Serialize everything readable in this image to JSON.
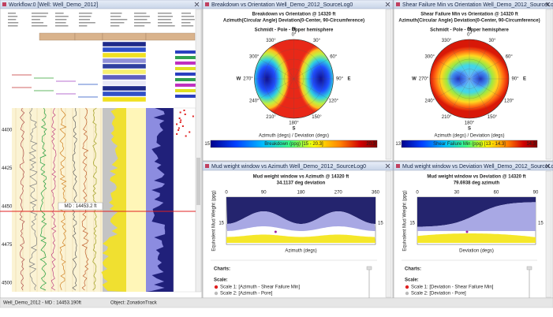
{
  "workflow": {
    "title": "Workflow:0 [Well: Well_Demo_2012]",
    "depths": [
      "4400",
      "4425",
      "4450",
      "4475",
      "4500"
    ],
    "md_label": "MD : 14453.2 ft"
  },
  "stereonets": [
    {
      "window_title": "Breakdown vs Orientation Well_Demo_2012_SourceLog0",
      "title": "Breakdown vs Orientation @ 14320 ft",
      "subtitle": "Azimuth(Circular Angle) Deviation(0-Center, 90-Circumference)",
      "projection": "Schmidt - Pole - Upper hemisphere",
      "axis_label": "Azimuth (degs) / Deviation (degs)",
      "colorbar_label": "Breakdown (ppg) [15 - 20.3]",
      "colorbar_min": "15",
      "colorbar_max": "20.3"
    },
    {
      "window_title": "Shear Failure Min vs Orientation Well_Demo_2012_SourceLog0",
      "title": "Shear Failure Min vs Orientation @ 14320 ft",
      "subtitle": "Azimuth(Circular Angle) Deviation(0-Center, 90-Circumference)",
      "projection": "Schmidt - Pole - Upper hemisphere",
      "axis_label": "Azimuth (degs) / Deviation (degs)",
      "colorbar_label": "Shear Failure Min (ppg) [13 - 14.3]",
      "colorbar_min": "13",
      "colorbar_max": "14.3"
    }
  ],
  "ring_labels": [
    "0°",
    "30°",
    "60°",
    "90°",
    "120°",
    "150°",
    "180°",
    "210°",
    "240°",
    "270°",
    "300°",
    "330°"
  ],
  "cardinals": [
    "N",
    "E",
    "S",
    "W"
  ],
  "mud_windows": [
    {
      "window_title": "Mud weight window vs Azimuth Well_Demo_2012_SourceLog0",
      "title": "Mud weight window vs Azimuth @ 14320 ft",
      "subtitle": "34.1137 deg deviation",
      "xticks": [
        "0",
        "90",
        "180",
        "270",
        "360"
      ],
      "ytick": "15",
      "xlabel": "Azimuth (degs)",
      "ylabel": "Equivalent Mud Weight (ppg)",
      "charts_label": "Charts:",
      "scale_label": "Scale:",
      "scales": [
        "Scale 1: [Azimuth - Shear Failure Min]",
        "Scale 2: [Azimuth - Pore]"
      ]
    },
    {
      "window_title": "Mud weight window vs Deviation Well_Demo_2012_SourceLog0",
      "title": "Mud weight window vs Deviation @ 14320 ft",
      "subtitle": "79.6938 deg azimuth",
      "xticks": [
        "0",
        "30",
        "60",
        "90"
      ],
      "ytick": "15",
      "xlabel": "Deviation (degs)",
      "ylabel": "Equivalent Mud Weight (ppg)",
      "charts_label": "Charts:",
      "scale_label": "Scale:",
      "scales": [
        "Scale 1: [Deviation - Shear Failure Min]",
        "Scale 2: [Deviation - Pore]"
      ]
    }
  ],
  "status": {
    "left": "Well_Demo_2012 - MD : 14453.190ft",
    "right": "Object: ZonationTrack"
  }
}
